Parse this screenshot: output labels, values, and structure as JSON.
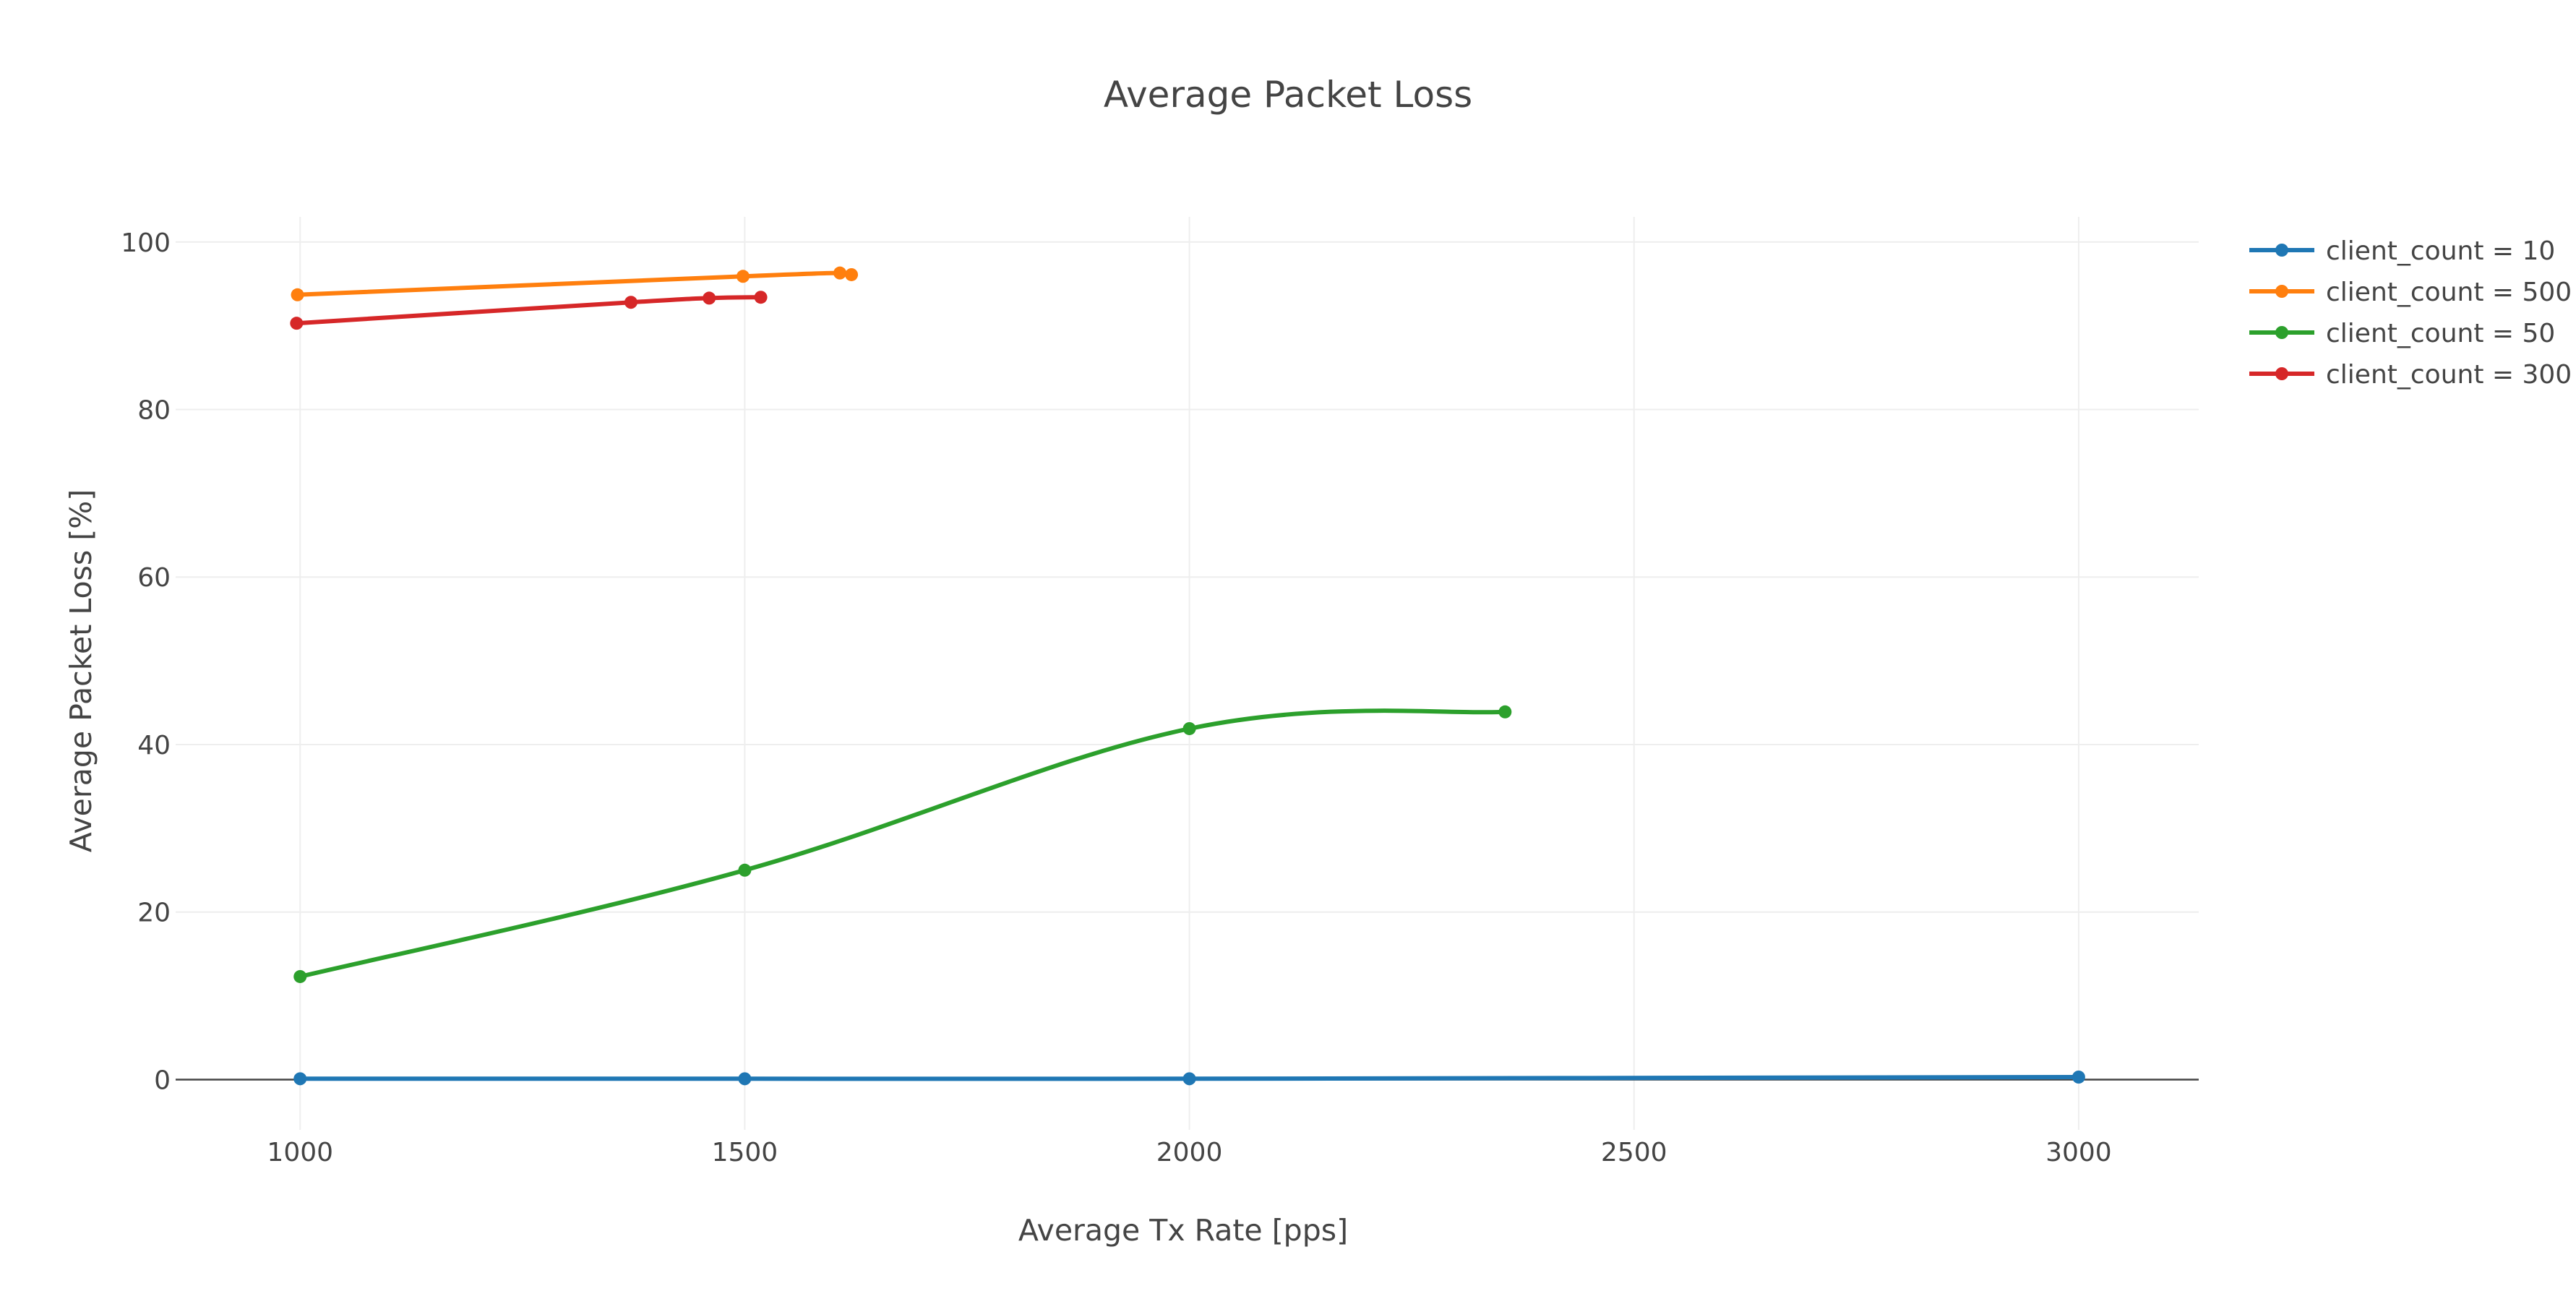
{
  "chart_data": {
    "type": "line",
    "title": "Average Packet Loss",
    "xlabel": "Average Tx Rate [pps]",
    "ylabel": "Average Packet Loss [%]",
    "xlim": [
      860,
      3135
    ],
    "ylim": [
      -6,
      103
    ],
    "x_ticks": [
      1000,
      1500,
      2000,
      2500,
      3000
    ],
    "y_ticks": [
      0,
      20,
      40,
      60,
      80,
      100
    ],
    "grid": true,
    "legend_position": "top-right",
    "series": [
      {
        "name": "client_count = 10",
        "color": "#1f77b4",
        "x": [
          1000,
          1500,
          2000,
          3000
        ],
        "y": [
          0.1,
          0.1,
          0.1,
          0.3
        ]
      },
      {
        "name": "client_count = 500",
        "color": "#ff7f0e",
        "x": [
          997,
          1498,
          1607,
          1620
        ],
        "y": [
          93.7,
          95.9,
          96.3,
          96.1
        ]
      },
      {
        "name": "client_count = 50",
        "color": "#2ca02c",
        "x": [
          1000,
          1500,
          2000,
          2355
        ],
        "y": [
          12.3,
          25.0,
          41.9,
          43.9
        ]
      },
      {
        "name": "client_count = 300",
        "color": "#d62728",
        "x": [
          996,
          1372,
          1460,
          1518
        ],
        "y": [
          90.3,
          92.8,
          93.3,
          93.4
        ]
      }
    ]
  }
}
